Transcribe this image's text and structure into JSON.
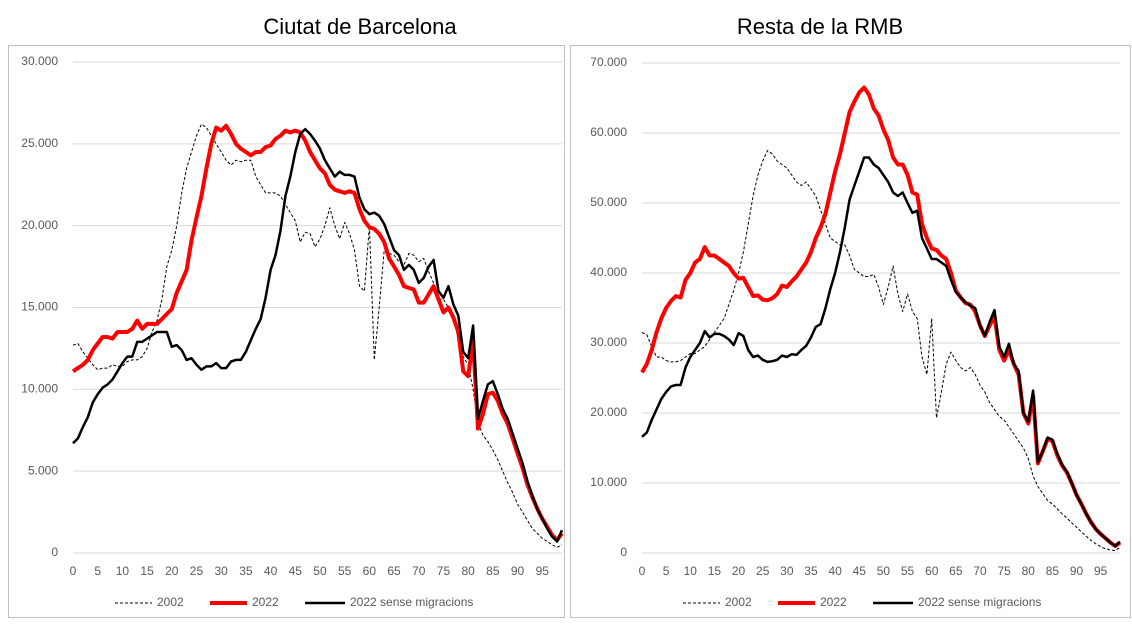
{
  "chart_data": [
    {
      "type": "line",
      "title": "Ciutat de Barcelona",
      "x": [
        0,
        1,
        2,
        3,
        4,
        5,
        6,
        7,
        8,
        9,
        10,
        11,
        12,
        13,
        14,
        15,
        16,
        17,
        18,
        19,
        20,
        21,
        22,
        23,
        24,
        25,
        26,
        27,
        28,
        29,
        30,
        31,
        32,
        33,
        34,
        35,
        36,
        37,
        38,
        39,
        40,
        41,
        42,
        43,
        44,
        45,
        46,
        47,
        48,
        49,
        50,
        51,
        52,
        53,
        54,
        55,
        56,
        57,
        58,
        59,
        60,
        61,
        62,
        63,
        64,
        65,
        66,
        67,
        68,
        69,
        70,
        71,
        72,
        73,
        74,
        75,
        76,
        77,
        78,
        79,
        80,
        81,
        82,
        83,
        84,
        85,
        86,
        87,
        88,
        89,
        90,
        91,
        92,
        93,
        94,
        95,
        96,
        97,
        98,
        99
      ],
      "xlim": [
        0,
        99
      ],
      "xticks": [
        0,
        5,
        10,
        15,
        20,
        25,
        30,
        35,
        40,
        45,
        50,
        55,
        60,
        65,
        70,
        75,
        80,
        85,
        90,
        95
      ],
      "ylim": [
        0,
        30000
      ],
      "yticks": [
        0,
        {
          "value": 5000,
          "label": "5.000"
        },
        {
          "value": 10000,
          "label": "10.000"
        },
        {
          "value": 15000,
          "label": "15.000"
        },
        {
          "value": 20000,
          "label": "20.000"
        },
        {
          "value": 25000,
          "label": "25.000"
        },
        {
          "value": 30000,
          "label": "30.000"
        }
      ],
      "grid": true,
      "series": [
        {
          "name": "2002",
          "color": "#000000",
          "line_style": "dashed",
          "values": [
            12700,
            12800,
            12300,
            11900,
            11500,
            11200,
            11300,
            11300,
            11500,
            11400,
            11400,
            11700,
            11800,
            11800,
            12000,
            12500,
            13500,
            14200,
            15500,
            17500,
            18500,
            20000,
            22000,
            23500,
            24500,
            25500,
            26200,
            26000,
            25500,
            25000,
            24500,
            24000,
            23700,
            24000,
            23900,
            24000,
            24000,
            23000,
            22500,
            22000,
            22000,
            22000,
            21800,
            21300,
            20800,
            20300,
            19000,
            19600,
            19500,
            18700,
            19200,
            20000,
            21100,
            20000,
            19200,
            20200,
            19500,
            18500,
            16300,
            16000,
            20000,
            11800,
            15000,
            18500,
            18300,
            18200,
            17800,
            17600,
            18300,
            18200,
            17800,
            18000,
            17200,
            16500,
            15500,
            15500,
            15000,
            14500,
            13000,
            12000,
            11500,
            10000,
            8000,
            7200,
            6800,
            6300,
            5700,
            5000,
            4300,
            3700,
            3000,
            2500,
            2000,
            1500,
            1200,
            900,
            700,
            500,
            350,
            500
          ]
        },
        {
          "name": "2022",
          "color": "#ff0000",
          "line_style": "solid",
          "values": [
            11100,
            11300,
            11500,
            11800,
            12400,
            12800,
            13200,
            13200,
            13100,
            13500,
            13500,
            13500,
            13700,
            14200,
            13700,
            14000,
            14000,
            14000,
            14300,
            14600,
            14900,
            15900,
            16600,
            17300,
            19100,
            20500,
            21800,
            23500,
            25000,
            26000,
            25800,
            26100,
            25600,
            25000,
            24700,
            24500,
            24300,
            24500,
            24500,
            24800,
            24900,
            25300,
            25500,
            25800,
            25700,
            25800,
            25700,
            25200,
            24500,
            24000,
            23500,
            23200,
            22500,
            22200,
            22100,
            22000,
            22100,
            22000,
            21000,
            20300,
            19900,
            19800,
            19500,
            19000,
            18000,
            17500,
            17000,
            16300,
            16200,
            16100,
            15300,
            15300,
            15800,
            16300,
            15500,
            14700,
            15000,
            14400,
            13500,
            11100,
            10800,
            13000,
            7600,
            8500,
            9700,
            9800,
            9300,
            8500,
            7900,
            7000,
            6100,
            5200,
            4200,
            3400,
            2700,
            2100,
            1600,
            1100,
            800,
            1200
          ]
        },
        {
          "name": "2022 sense migracions",
          "color": "#000000",
          "line_style": "solid",
          "values": [
            6700,
            7000,
            7700,
            8300,
            9200,
            9700,
            10100,
            10300,
            10600,
            11100,
            11600,
            12000,
            12000,
            12900,
            12900,
            13100,
            13300,
            13500,
            13500,
            13500,
            12600,
            12700,
            12400,
            11800,
            11900,
            11500,
            11200,
            11400,
            11400,
            11600,
            11300,
            11300,
            11700,
            11800,
            11800,
            12300,
            13000,
            13700,
            14300,
            15600,
            17300,
            18200,
            19700,
            21800,
            23000,
            24500,
            25600,
            25900,
            25600,
            25200,
            24700,
            24000,
            23500,
            23000,
            23300,
            23100,
            23100,
            23000,
            21700,
            21000,
            20700,
            20800,
            20600,
            20100,
            19300,
            18500,
            18200,
            17300,
            17600,
            17300,
            16500,
            16800,
            17500,
            17900,
            16000,
            15600,
            16300,
            15200,
            14500,
            12300,
            11900,
            13900,
            8200,
            9300,
            10300,
            10500,
            9700,
            8800,
            8200,
            7300,
            6400,
            5500,
            4400,
            3500,
            2700,
            2100,
            1500,
            1000,
            700,
            1400
          ]
        }
      ]
    },
    {
      "type": "line",
      "title": "Resta de la RMB",
      "x": [
        0,
        1,
        2,
        3,
        4,
        5,
        6,
        7,
        8,
        9,
        10,
        11,
        12,
        13,
        14,
        15,
        16,
        17,
        18,
        19,
        20,
        21,
        22,
        23,
        24,
        25,
        26,
        27,
        28,
        29,
        30,
        31,
        32,
        33,
        34,
        35,
        36,
        37,
        38,
        39,
        40,
        41,
        42,
        43,
        44,
        45,
        46,
        47,
        48,
        49,
        50,
        51,
        52,
        53,
        54,
        55,
        56,
        57,
        58,
        59,
        60,
        61,
        62,
        63,
        64,
        65,
        66,
        67,
        68,
        69,
        70,
        71,
        72,
        73,
        74,
        75,
        76,
        77,
        78,
        79,
        80,
        81,
        82,
        83,
        84,
        85,
        86,
        87,
        88,
        89,
        90,
        91,
        92,
        93,
        94,
        95,
        96,
        97,
        98,
        99
      ],
      "xlim": [
        0,
        99
      ],
      "xticks": [
        0,
        5,
        10,
        15,
        20,
        25,
        30,
        35,
        40,
        45,
        50,
        55,
        60,
        65,
        70,
        75,
        80,
        85,
        90,
        95
      ],
      "ylim": [
        0,
        70000
      ],
      "yticks": [
        0,
        {
          "value": 10000,
          "label": "10.000"
        },
        {
          "value": 20000,
          "label": "20.000"
        },
        {
          "value": 30000,
          "label": "30.000"
        },
        {
          "value": 40000,
          "label": "40.000"
        },
        {
          "value": 50000,
          "label": "50.000"
        },
        {
          "value": 60000,
          "label": "60.000"
        },
        {
          "value": 70000,
          "label": "70.000"
        }
      ],
      "grid": true,
      "series": [
        {
          "name": "2002",
          "color": "#000000",
          "line_style": "dashed",
          "values": [
            31500,
            31200,
            29500,
            28000,
            28000,
            27500,
            27300,
            27300,
            27500,
            28000,
            28500,
            28500,
            29000,
            29500,
            30500,
            31500,
            32500,
            33500,
            35500,
            37500,
            40000,
            43000,
            47000,
            51000,
            54000,
            56000,
            57500,
            57000,
            56000,
            55500,
            55000,
            54000,
            53000,
            52500,
            53000,
            52000,
            51000,
            49000,
            47000,
            45000,
            44500,
            44000,
            44000,
            42500,
            40500,
            40000,
            39500,
            39500,
            39800,
            38000,
            35500,
            38000,
            41000,
            37000,
            34500,
            37000,
            34500,
            33500,
            28000,
            25500,
            33500,
            19300,
            23000,
            27000,
            28700,
            27500,
            26500,
            26000,
            26500,
            25500,
            24000,
            23000,
            21500,
            20500,
            19500,
            19000,
            18000,
            17000,
            16000,
            15000,
            13500,
            11000,
            9500,
            8500,
            7500,
            7000,
            6300,
            5600,
            5000,
            4300,
            3700,
            3000,
            2400,
            1800,
            1300,
            900,
            600,
            450,
            350,
            800
          ]
        },
        {
          "name": "2022",
          "color": "#ff0000",
          "line_style": "solid",
          "values": [
            25800,
            27000,
            29000,
            31500,
            33500,
            35000,
            36000,
            36700,
            36500,
            39000,
            40000,
            41500,
            42000,
            43700,
            42500,
            42500,
            42000,
            41500,
            41000,
            40000,
            39200,
            39300,
            38000,
            36700,
            36800,
            36200,
            36100,
            36400,
            37000,
            38200,
            38000,
            38800,
            39500,
            40500,
            41500,
            43000,
            45000,
            46500,
            48500,
            51500,
            54500,
            57000,
            60000,
            63000,
            64500,
            65800,
            66500,
            65500,
            63500,
            62500,
            60500,
            59000,
            56500,
            55500,
            55500,
            54000,
            51500,
            51200,
            47000,
            45000,
            43500,
            43300,
            42500,
            42000,
            40000,
            37500,
            36500,
            35700,
            35500,
            34500,
            32500,
            31000,
            32500,
            33800,
            29000,
            27500,
            29000,
            27000,
            25500,
            20000,
            18500,
            22500,
            12800,
            14500,
            16300,
            16000,
            14000,
            12500,
            11500,
            10000,
            8300,
            7000,
            5600,
            4400,
            3400,
            2700,
            2100,
            1500,
            1000,
            1500
          ]
        },
        {
          "name": "2022 sense migracions",
          "color": "#000000",
          "line_style": "solid",
          "values": [
            16600,
            17200,
            19000,
            20500,
            22000,
            23000,
            23800,
            24000,
            24000,
            26500,
            28000,
            29000,
            30000,
            31700,
            30800,
            31300,
            31300,
            31000,
            30500,
            29700,
            31400,
            31000,
            29000,
            28000,
            28200,
            27600,
            27300,
            27400,
            27600,
            28200,
            28000,
            28400,
            28300,
            29000,
            29600,
            30800,
            32300,
            32700,
            35000,
            37700,
            40000,
            43000,
            46500,
            50500,
            52500,
            54500,
            56500,
            56500,
            55500,
            55000,
            54000,
            53000,
            51500,
            51000,
            51500,
            50000,
            48600,
            48900,
            45000,
            43500,
            42000,
            42000,
            41500,
            41000,
            39000,
            37300,
            36500,
            35800,
            35300,
            35000,
            32500,
            31000,
            33000,
            34700,
            29500,
            28000,
            29900,
            27000,
            26000,
            20000,
            18800,
            23200,
            13000,
            14500,
            16500,
            16200,
            14200,
            12600,
            11600,
            10000,
            8300,
            7000,
            5600,
            4400,
            3400,
            2700,
            2100,
            1500,
            1000,
            1600
          ]
        }
      ]
    }
  ]
}
